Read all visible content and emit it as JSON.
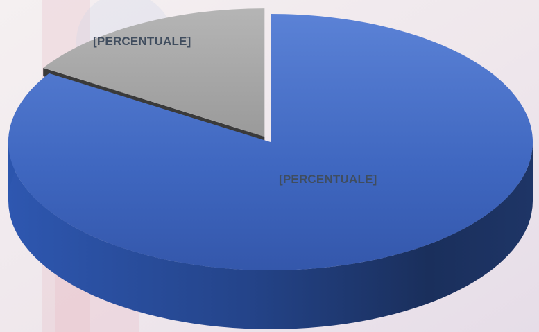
{
  "chart_data": {
    "type": "pie",
    "style": "3d-exploded",
    "slices": [
      {
        "label": "[PERCENTUALE]",
        "share": 0.84,
        "color": "#4a72c8"
      },
      {
        "label": "[PERCENTUALE]",
        "share": 0.16,
        "color": "#a6a6a6"
      }
    ],
    "title": "",
    "legend": "none"
  },
  "background": {
    "colors": [
      "#f4eeee",
      "#e9dfe6",
      "#e7c8cf"
    ]
  }
}
